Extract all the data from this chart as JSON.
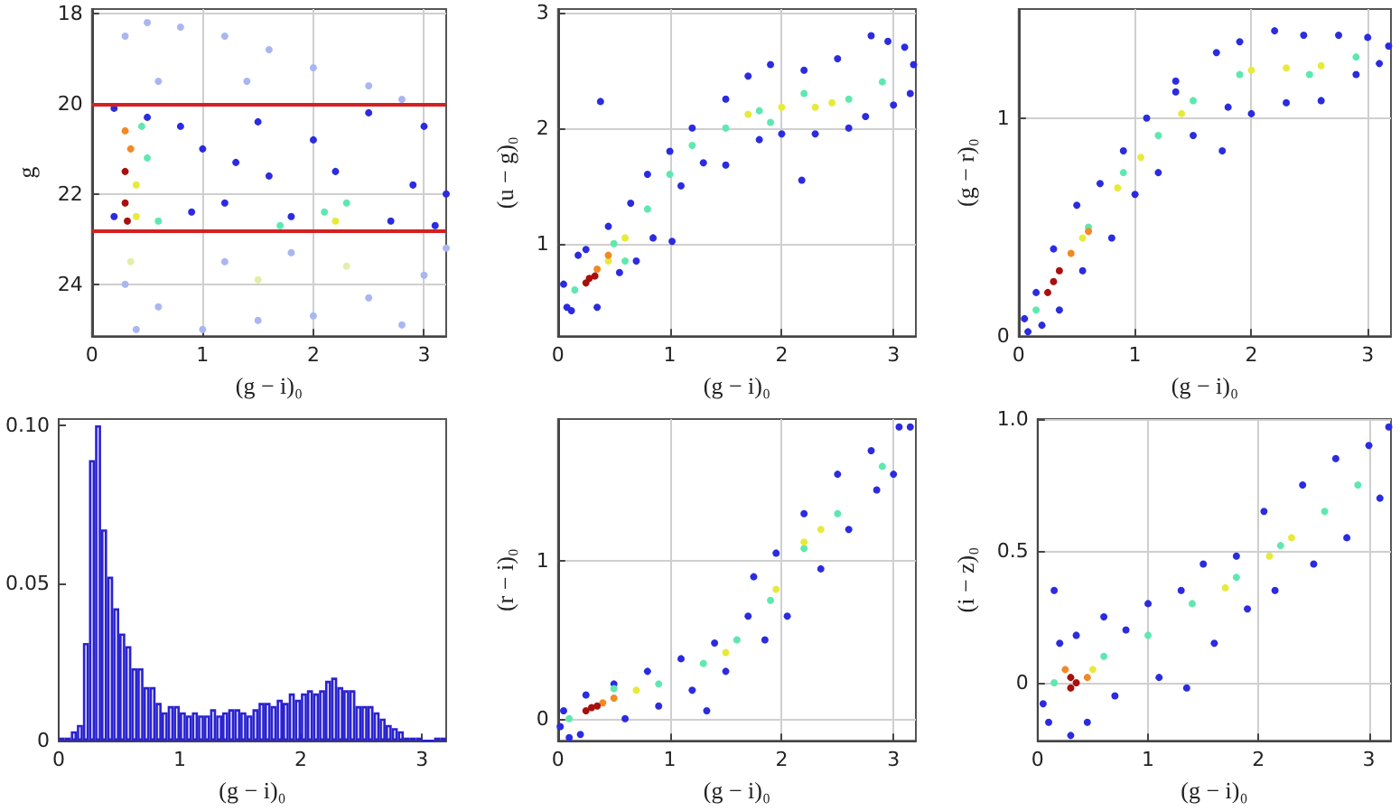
{
  "chart_data": [
    {
      "type": "scatter",
      "xlabel": "(g − i)₀",
      "ylabel": "g",
      "xlim": [
        0,
        3.2
      ],
      "ylim": [
        25.15,
        17.9
      ],
      "xticks": [
        0,
        1,
        2,
        3
      ],
      "yticks": [
        18,
        20,
        22,
        24
      ],
      "grid": true,
      "marker": "circle",
      "ref_lines": [
        {
          "axis": "y",
          "value": 20,
          "color": "#d42020"
        },
        {
          "axis": "y",
          "value": 22.8,
          "color": "#d42020"
        }
      ],
      "series": [
        {
          "color": "#a9b6f2",
          "x": [
            0.3,
            0.5,
            0.8,
            1.2,
            1.6,
            2.0,
            2.5,
            2.8,
            0.6,
            1.4,
            0.3,
            0.6,
            1.0,
            1.5,
            2.0,
            2.5,
            3.0,
            3.2,
            1.2,
            2.8,
            0.4,
            1.8
          ],
          "values": [
            18.5,
            18.2,
            18.3,
            18.5,
            18.8,
            19.2,
            19.6,
            19.9,
            19.5,
            19.5,
            24.0,
            24.5,
            25.0,
            24.8,
            24.7,
            24.3,
            23.8,
            23.2,
            23.5,
            24.9,
            25.0,
            23.3
          ]
        },
        {
          "color": "#e4eeaa",
          "x": [
            1.5,
            2.3,
            0.35
          ],
          "values": [
            23.9,
            23.6,
            23.5
          ]
        },
        {
          "color": "#2b2be0",
          "x": [
            0.2,
            0.2,
            0.5,
            0.8,
            1.0,
            1.2,
            1.5,
            1.6,
            1.8,
            2.0,
            2.2,
            2.5,
            2.7,
            2.9,
            3.0,
            3.2,
            3.1,
            1.3,
            0.9
          ],
          "values": [
            20.1,
            22.5,
            20.3,
            20.5,
            21.0,
            22.2,
            20.4,
            21.6,
            22.5,
            20.8,
            21.5,
            20.2,
            22.6,
            21.8,
            20.5,
            22.0,
            22.7,
            21.3,
            22.4
          ]
        },
        {
          "color": "#5ee8b0",
          "x": [
            0.5,
            0.6,
            2.1,
            2.3,
            1.7,
            0.45
          ],
          "values": [
            21.2,
            22.6,
            22.4,
            22.2,
            22.7,
            20.5
          ]
        },
        {
          "color": "#e6ea3c",
          "x": [
            0.4,
            0.4,
            2.2
          ],
          "values": [
            21.8,
            22.5,
            22.6
          ]
        },
        {
          "color": "#f08a24",
          "x": [
            0.35,
            0.3
          ],
          "values": [
            21.0,
            20.6
          ]
        },
        {
          "color": "#a8100c",
          "x": [
            0.3,
            0.3,
            0.32
          ],
          "values": [
            21.5,
            22.2,
            22.6
          ]
        }
      ]
    },
    {
      "type": "scatter",
      "xlabel": "(g − i)₀",
      "ylabel": "(u − g)₀",
      "xlim": [
        0,
        3.2
      ],
      "ylim": [
        0.2,
        3.03
      ],
      "xticks": [
        0,
        1,
        2,
        3
      ],
      "yticks": [
        1,
        2,
        3
      ],
      "grid": true,
      "marker": "circle",
      "series": [
        {
          "color": "#2b2be0",
          "x": [
            0.05,
            0.08,
            0.12,
            0.18,
            0.25,
            0.38,
            0.35,
            0.45,
            0.55,
            0.65,
            0.7,
            0.8,
            0.85,
            1.0,
            1.02,
            1.1,
            1.2,
            1.3,
            1.5,
            1.5,
            1.7,
            1.8,
            1.9,
            2.0,
            2.18,
            2.2,
            2.3,
            2.5,
            2.6,
            2.8,
            2.75,
            2.95,
            3.0,
            3.1,
            3.15,
            3.18
          ],
          "values": [
            0.65,
            0.45,
            0.42,
            0.9,
            0.95,
            2.23,
            0.45,
            1.15,
            0.75,
            1.35,
            0.85,
            1.6,
            1.05,
            1.8,
            1.02,
            1.5,
            2.0,
            1.7,
            2.25,
            1.68,
            2.45,
            1.9,
            2.55,
            1.95,
            1.55,
            2.5,
            1.95,
            2.6,
            2.0,
            2.8,
            2.1,
            2.75,
            2.2,
            2.7,
            2.3,
            2.55
          ]
        },
        {
          "color": "#5ee8b0",
          "x": [
            0.15,
            0.5,
            0.8,
            1.0,
            1.2,
            1.5,
            1.8,
            2.2,
            2.6,
            2.9,
            1.9,
            0.6
          ],
          "values": [
            0.6,
            1.0,
            1.3,
            1.6,
            1.85,
            2.0,
            2.15,
            2.3,
            2.25,
            2.4,
            2.05,
            0.85
          ]
        },
        {
          "color": "#e6ea3c",
          "x": [
            0.45,
            0.6,
            1.7,
            2.0,
            2.3,
            2.45
          ],
          "values": [
            0.85,
            1.05,
            2.12,
            2.18,
            2.18,
            2.22
          ]
        },
        {
          "color": "#f08a24",
          "x": [
            0.35,
            0.45
          ],
          "values": [
            0.78,
            0.9
          ]
        },
        {
          "color": "#a8100c",
          "x": [
            0.28,
            0.33,
            0.25
          ],
          "values": [
            0.7,
            0.72,
            0.66
          ]
        }
      ]
    },
    {
      "type": "scatter",
      "xlabel": "(g − i)₀",
      "ylabel": "(g − r)₀",
      "xlim": [
        0,
        3.2
      ],
      "ylim": [
        0,
        1.5
      ],
      "xticks": [
        0,
        1,
        2,
        3
      ],
      "yticks": [
        0,
        1
      ],
      "grid": true,
      "marker": "circle",
      "series": [
        {
          "color": "#2b2be0",
          "x": [
            0.05,
            0.08,
            0.15,
            0.2,
            0.3,
            0.35,
            0.5,
            0.55,
            0.7,
            0.8,
            0.9,
            1.0,
            1.1,
            1.2,
            1.35,
            1.35,
            1.5,
            1.7,
            1.75,
            1.8,
            1.9,
            2.0,
            2.2,
            2.3,
            2.45,
            2.6,
            2.75,
            2.9,
            3.0,
            3.1,
            3.18
          ],
          "values": [
            0.08,
            0.02,
            0.2,
            0.05,
            0.4,
            0.12,
            0.6,
            0.3,
            0.7,
            0.45,
            0.85,
            0.65,
            1.0,
            0.75,
            1.12,
            1.17,
            0.92,
            1.3,
            0.85,
            1.05,
            1.35,
            1.02,
            1.4,
            1.07,
            1.38,
            1.08,
            1.38,
            1.2,
            1.37,
            1.25,
            1.33
          ]
        },
        {
          "color": "#5ee8b0",
          "x": [
            0.15,
            0.6,
            0.9,
            1.2,
            1.5,
            1.9,
            2.5,
            2.9
          ],
          "values": [
            0.12,
            0.5,
            0.75,
            0.92,
            1.08,
            1.2,
            1.2,
            1.28
          ]
        },
        {
          "color": "#e6ea3c",
          "x": [
            0.55,
            0.85,
            1.05,
            1.4,
            2.0,
            2.3,
            2.6
          ],
          "values": [
            0.45,
            0.68,
            0.82,
            1.02,
            1.22,
            1.23,
            1.24
          ]
        },
        {
          "color": "#f08a24",
          "x": [
            0.45,
            0.6
          ],
          "values": [
            0.38,
            0.48
          ]
        },
        {
          "color": "#a8100c",
          "x": [
            0.25,
            0.3,
            0.35
          ],
          "values": [
            0.2,
            0.25,
            0.3
          ]
        }
      ]
    },
    {
      "type": "histogram",
      "xlabel": "(g − i)₀",
      "xlim": [
        0,
        3.2
      ],
      "ylim": [
        0,
        0.102
      ],
      "xticks": [
        0,
        1,
        2,
        3
      ],
      "yticks": [
        0,
        0.05,
        {
          "value": 0.1,
          "label": "0.10"
        }
      ],
      "color": "#2a22d0",
      "bins": [
        0,
        0.05,
        0.1,
        0.15,
        0.2,
        0.25,
        0.3,
        0.35,
        0.4,
        0.45,
        0.5,
        0.55,
        0.6,
        0.65,
        0.7,
        0.75,
        0.8,
        0.85,
        0.9,
        0.95,
        1,
        1.05,
        1.1,
        1.15,
        1.2,
        1.25,
        1.3,
        1.35,
        1.4,
        1.45,
        1.5,
        1.55,
        1.6,
        1.65,
        1.7,
        1.75,
        1.8,
        1.85,
        1.9,
        1.95,
        2,
        2.05,
        2.1,
        2.15,
        2.2,
        2.25,
        2.3,
        2.35,
        2.4,
        2.45,
        2.5,
        2.55,
        2.6,
        2.65,
        2.7,
        2.75,
        2.8,
        2.85,
        2.9,
        2.95,
        3,
        3.05,
        3.1,
        3.15,
        3.2
      ],
      "values": [
        0.001,
        0.001,
        0.003,
        0.005,
        0.031,
        0.089,
        0.1,
        0.067,
        0.052,
        0.042,
        0.034,
        0.03,
        0.023,
        0.023,
        0.017,
        0.017,
        0.012,
        0.009,
        0.011,
        0.011,
        0.009,
        0.008,
        0.009,
        0.008,
        0.008,
        0.01,
        0.008,
        0.009,
        0.01,
        0.01,
        0.009,
        0.008,
        0.01,
        0.012,
        0.012,
        0.011,
        0.013,
        0.012,
        0.015,
        0.013,
        0.015,
        0.016,
        0.015,
        0.016,
        0.019,
        0.02,
        0.017,
        0.016,
        0.016,
        0.011,
        0.011,
        0.011,
        0.009,
        0.007,
        0.005,
        0.004,
        0.003,
        0.001,
        0.001,
        0.001,
        0,
        0,
        0.001,
        0.001
      ]
    },
    {
      "type": "scatter",
      "xlabel": "(g − i)₀",
      "ylabel": "(r − i)₀",
      "xlim": [
        0,
        3.2
      ],
      "ylim": [
        -0.14,
        1.9
      ],
      "xticks": [
        0,
        1,
        2,
        3
      ],
      "yticks": [
        0,
        1
      ],
      "grid": true,
      "marker": "circle",
      "series": [
        {
          "color": "#2b2be0",
          "x": [
            0.02,
            0.05,
            0.1,
            0.2,
            0.25,
            0.5,
            0.6,
            0.8,
            0.9,
            1.1,
            1.2,
            1.33,
            1.4,
            1.5,
            1.75,
            1.7,
            1.85,
            1.95,
            2.05,
            2.2,
            2.35,
            2.5,
            2.6,
            2.8,
            2.85,
            3.05,
            3.0,
            3.15
          ],
          "values": [
            -0.05,
            0.05,
            -0.12,
            -0.1,
            0.15,
            0.22,
            0.0,
            0.3,
            0.08,
            0.38,
            0.18,
            0.05,
            0.48,
            0.3,
            0.9,
            0.65,
            0.5,
            1.05,
            0.65,
            1.3,
            0.95,
            1.55,
            1.2,
            1.7,
            1.45,
            1.85,
            1.55,
            1.85
          ]
        },
        {
          "color": "#5ee8b0",
          "x": [
            0.1,
            0.5,
            0.9,
            1.3,
            1.6,
            1.9,
            2.2,
            2.5,
            2.9
          ],
          "values": [
            0.0,
            0.19,
            0.22,
            0.35,
            0.5,
            0.75,
            1.08,
            1.3,
            1.6
          ]
        },
        {
          "color": "#e6ea3c",
          "x": [
            0.7,
            1.5,
            1.95,
            2.2,
            2.35
          ],
          "values": [
            0.18,
            0.42,
            0.82,
            1.12,
            1.2
          ]
        },
        {
          "color": "#f08a24",
          "x": [
            0.4,
            0.5
          ],
          "values": [
            0.1,
            0.13
          ]
        },
        {
          "color": "#a8100c",
          "x": [
            0.25,
            0.3,
            0.35
          ],
          "values": [
            0.05,
            0.07,
            0.08
          ]
        }
      ]
    },
    {
      "type": "scatter",
      "xlabel": "(g − i)₀",
      "ylabel": "(i − z)₀",
      "xlim": [
        0,
        3.2
      ],
      "ylim": [
        -0.22,
        1
      ],
      "xticks": [
        0,
        1,
        2,
        3
      ],
      "yticks": [
        0,
        0.5,
        {
          "value": 1,
          "label": "1.0"
        }
      ],
      "grid": true,
      "marker": "circle",
      "series": [
        {
          "color": "#2b2be0",
          "x": [
            0.05,
            0.1,
            0.15,
            0.2,
            0.3,
            0.35,
            0.45,
            0.6,
            0.7,
            0.8,
            1.0,
            1.1,
            1.3,
            1.35,
            1.5,
            1.6,
            1.8,
            1.9,
            2.05,
            2.15,
            2.4,
            2.5,
            2.7,
            2.8,
            3.0,
            3.1,
            3.18
          ],
          "values": [
            -0.08,
            -0.15,
            0.35,
            0.15,
            -0.2,
            0.18,
            -0.15,
            0.25,
            -0.05,
            0.2,
            0.3,
            0.02,
            0.35,
            -0.02,
            0.45,
            0.15,
            0.48,
            0.28,
            0.65,
            0.35,
            0.75,
            0.45,
            0.85,
            0.55,
            0.9,
            0.7,
            0.97
          ]
        },
        {
          "color": "#5ee8b0",
          "x": [
            0.15,
            0.6,
            1.0,
            1.4,
            1.8,
            2.2,
            2.6,
            2.9
          ],
          "values": [
            0.0,
            0.1,
            0.18,
            0.3,
            0.4,
            0.52,
            0.65,
            0.75
          ]
        },
        {
          "color": "#e6ea3c",
          "x": [
            0.5,
            1.7,
            2.1,
            2.3
          ],
          "values": [
            0.05,
            0.36,
            0.48,
            0.55
          ]
        },
        {
          "color": "#f08a24",
          "x": [
            0.45,
            0.25
          ],
          "values": [
            0.02,
            0.05
          ]
        },
        {
          "color": "#a8100c",
          "x": [
            0.3,
            0.35,
            0.3
          ],
          "values": [
            -0.02,
            0.0,
            0.02
          ]
        }
      ]
    }
  ]
}
